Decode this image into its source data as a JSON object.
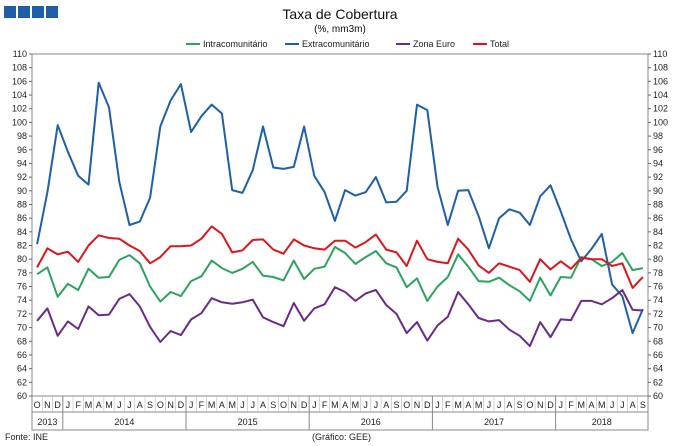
{
  "header": {
    "title": "Taxa de Cobertura",
    "subtitle": "(%, mm3m)",
    "logo_color": "#1f5fa8"
  },
  "footer": {
    "source": "Fonte: INE",
    "credit": "(Gráfico: GEE)"
  },
  "chart_data": {
    "type": "line",
    "title": "Taxa de Cobertura",
    "subtitle": "(%, mm3m)",
    "xlabel": "",
    "ylabel": "",
    "ylim": [
      60,
      110
    ],
    "yticks": [
      60,
      62,
      64,
      66,
      68,
      70,
      72,
      74,
      76,
      78,
      80,
      82,
      84,
      86,
      88,
      90,
      92,
      94,
      96,
      98,
      100,
      102,
      104,
      106,
      108,
      110
    ],
    "grid": false,
    "legend_position": "top",
    "x": [
      "2013-10",
      "2013-11",
      "2013-12",
      "2014-01",
      "2014-02",
      "2014-03",
      "2014-04",
      "2014-05",
      "2014-06",
      "2014-07",
      "2014-08",
      "2014-09",
      "2014-10",
      "2014-11",
      "2014-12",
      "2015-01",
      "2015-02",
      "2015-03",
      "2015-04",
      "2015-05",
      "2015-06",
      "2015-07",
      "2015-08",
      "2015-09",
      "2015-10",
      "2015-11",
      "2015-12",
      "2016-01",
      "2016-02",
      "2016-03",
      "2016-04",
      "2016-05",
      "2016-06",
      "2016-07",
      "2016-08",
      "2016-09",
      "2016-10",
      "2016-11",
      "2016-12",
      "2017-01",
      "2017-02",
      "2017-03",
      "2017-04",
      "2017-05",
      "2017-06",
      "2017-07",
      "2017-08",
      "2017-09",
      "2017-10",
      "2017-11",
      "2017-12",
      "2018-01",
      "2018-02",
      "2018-03",
      "2018-04",
      "2018-05",
      "2018-06",
      "2018-07",
      "2018-08",
      "2018-09"
    ],
    "month_labels": [
      "O",
      "N",
      "D",
      "J",
      "F",
      "M",
      "A",
      "M",
      "J",
      "J",
      "A",
      "S",
      "O",
      "N",
      "D",
      "J",
      "F",
      "M",
      "A",
      "M",
      "J",
      "J",
      "A",
      "S",
      "O",
      "N",
      "D",
      "J",
      "F",
      "M",
      "A",
      "M",
      "J",
      "J",
      "A",
      "S",
      "O",
      "N",
      "D",
      "J",
      "F",
      "M",
      "A",
      "M",
      "J",
      "J",
      "A",
      "S",
      "O",
      "N",
      "D",
      "J",
      "F",
      "M",
      "A",
      "M",
      "J",
      "J",
      "A",
      "S"
    ],
    "year_labels": [
      {
        "label": "2013",
        "start": 0,
        "end": 2
      },
      {
        "label": "2014",
        "start": 3,
        "end": 14
      },
      {
        "label": "2015",
        "start": 15,
        "end": 26
      },
      {
        "label": "2016",
        "start": 27,
        "end": 38
      },
      {
        "label": "2017",
        "start": 39,
        "end": 50
      },
      {
        "label": "2018",
        "start": 51,
        "end": 59
      }
    ],
    "series": [
      {
        "name": "Intracomunitário",
        "color": "#2ca25f",
        "values": [
          77.8,
          78.8,
          74.5,
          76.4,
          75.5,
          78.6,
          77.3,
          77.4,
          79.9,
          80.6,
          79.4,
          76.0,
          73.8,
          75.2,
          74.6,
          76.8,
          77.5,
          79.8,
          78.7,
          78.0,
          78.6,
          79.6,
          77.6,
          77.4,
          76.9,
          79.8,
          77.1,
          78.6,
          78.9,
          81.8,
          80.9,
          79.3,
          80.3,
          81.2,
          79.4,
          78.8,
          75.9,
          77.2,
          73.9,
          76.0,
          77.4,
          80.7,
          78.9,
          76.8,
          76.7,
          77.3,
          76.2,
          75.3,
          73.9,
          77.3,
          74.7,
          77.4,
          77.3,
          80.3,
          80.0,
          79.0,
          79.6,
          80.9,
          78.4,
          78.7
        ]
      },
      {
        "name": "Extracomunitário",
        "color": "#1f5fa8",
        "values": [
          82.2,
          89.8,
          99.6,
          95.7,
          92.2,
          90.9,
          105.8,
          102.2,
          91.3,
          85.0,
          85.5,
          89.0,
          99.4,
          103.2,
          105.6,
          98.6,
          100.9,
          102.6,
          101.3,
          90.1,
          89.7,
          93.0,
          99.4,
          93.4,
          93.2,
          93.5,
          99.4,
          92.2,
          89.8,
          85.6,
          90.1,
          89.3,
          89.8,
          92.0,
          88.3,
          88.4,
          90.0,
          102.6,
          101.8,
          90.6,
          85.0,
          90.0,
          90.1,
          86.3,
          81.6,
          86.0,
          87.3,
          86.8,
          85.0,
          89.2,
          90.8,
          87.0,
          82.9,
          79.7,
          81.5,
          83.7,
          76.3,
          74.6,
          69.2,
          72.7
        ]
      },
      {
        "name": "Zona Euro",
        "color": "#6a2a8a",
        "values": [
          71.0,
          72.8,
          68.8,
          70.9,
          69.8,
          73.1,
          71.8,
          71.9,
          74.2,
          74.9,
          73.1,
          70.1,
          67.9,
          69.5,
          68.9,
          71.2,
          72.1,
          74.3,
          73.7,
          73.5,
          73.7,
          74.1,
          71.5,
          70.8,
          70.2,
          73.6,
          71.0,
          72.8,
          73.4,
          75.9,
          75.2,
          73.9,
          75.0,
          75.5,
          73.3,
          72.0,
          69.2,
          70.8,
          68.1,
          70.3,
          71.6,
          75.2,
          73.4,
          71.4,
          70.9,
          71.1,
          69.7,
          68.8,
          67.3,
          70.8,
          68.6,
          71.2,
          71.1,
          73.9,
          73.9,
          73.4,
          74.3,
          75.5,
          72.6,
          72.5
        ]
      },
      {
        "name": "Total",
        "color": "#d7191c",
        "values": [
          78.8,
          81.6,
          80.7,
          81.1,
          79.6,
          82.0,
          83.5,
          83.1,
          83.0,
          82.0,
          81.2,
          79.4,
          80.3,
          81.9,
          81.9,
          82.0,
          83.0,
          84.8,
          83.7,
          81.0,
          81.3,
          82.8,
          82.9,
          81.4,
          80.8,
          82.9,
          82.0,
          81.6,
          81.4,
          82.7,
          82.7,
          81.7,
          82.5,
          83.6,
          81.4,
          81.0,
          79.0,
          82.7,
          80.0,
          79.6,
          79.4,
          83.0,
          81.4,
          79.1,
          78.0,
          79.4,
          78.9,
          78.4,
          76.7,
          80.0,
          78.5,
          79.7,
          78.6,
          80.2,
          80.0,
          80.0,
          79.0,
          79.4,
          75.8,
          77.4
        ]
      }
    ]
  }
}
